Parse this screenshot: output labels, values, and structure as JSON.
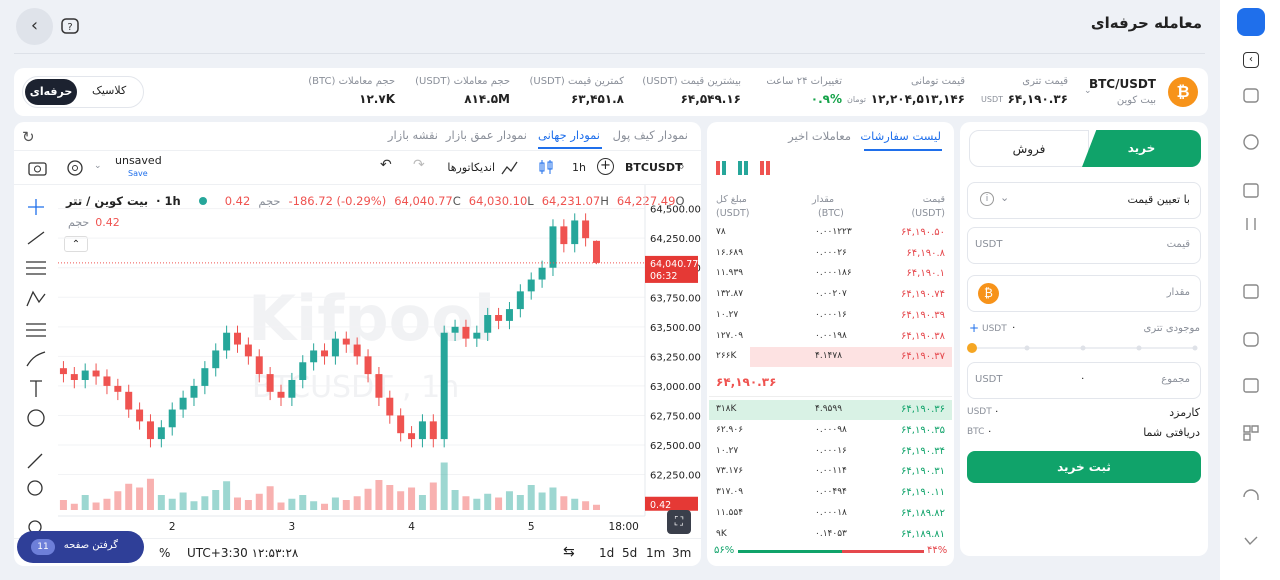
{
  "header": {
    "title": "معامله حرفه‌ای"
  },
  "ticker": {
    "pair": "BTC/USDT",
    "name": "بیت کوین",
    "stats": [
      {
        "label": "قیمت تتری",
        "value": "۶۴,۱۹۰.۳۶",
        "unit": "USDT"
      },
      {
        "label": "قیمت تومانی",
        "value": "۱۲,۲۰۴,۵۱۳,۱۴۶",
        "unit": "تومان"
      },
      {
        "label": "تغییرات ۲۴ ساعت",
        "value": "۰.۹%",
        "color": "#16a34a"
      },
      {
        "label": "بیشترین قیمت (USDT)",
        "value": "۶۴,۵۴۹.۱۶"
      },
      {
        "label": "کمترین قیمت (USDT)",
        "value": "۶۳,۴۵۱.۸"
      },
      {
        "label": "حجم معاملات (USDT)",
        "value": "۸۱۴.۵M"
      },
      {
        "label": "حجم معاملات (BTC)",
        "value": "۱۲.۷K"
      }
    ],
    "toggle": [
      "کلاسیک",
      "حرفه‌ای"
    ]
  },
  "chart": {
    "tabs": [
      "نمودار کیف پول",
      "نمودار جهانی",
      "نمودار عمق بازار",
      "نقشه بازار"
    ],
    "symbol": "BTCUSDT",
    "interval": "1h",
    "indicators": "اندیکاتورها",
    "layout": "unsaved",
    "save": "Save",
    "legend": {
      "title": "بیت کوین / تتر",
      "interval": "· 1h",
      "volume_key": "حجم",
      "volume": "0.42",
      "change": "-186.72 (-0.29%)",
      "ohlc": [
        {
          "key": "O",
          "value": "64,227.49"
        },
        {
          "key": "H",
          "value": "64,231.07"
        },
        {
          "key": "L",
          "value": "64,030.10"
        },
        {
          "key": "C",
          "value": "64,040.77"
        }
      ]
    },
    "watermark": [
      "Kifpool",
      "BTCUSDT , 1h"
    ],
    "last_price": "64,040.77",
    "countdown": "06:32",
    "periods": [
      "1d",
      "5d",
      "1m",
      "3m"
    ],
    "clock": "UTC+3:30 ۱۲:۵۳:۲۸",
    "percent": "%",
    "screenshot": "گرفتن صفحه",
    "badge": "11"
  },
  "chart_data": {
    "type": "candlestick",
    "ylim": [
      61950,
      64700
    ],
    "xlim": [
      -0.5,
      53
    ],
    "vlim": [
      0,
      6
    ],
    "yticks": [
      {
        "value": 64500,
        "label": "64,500.00"
      },
      {
        "value": 64250,
        "label": "64,250.00"
      },
      {
        "value": 64000,
        "label": "64,000.00"
      },
      {
        "value": 63750,
        "label": "63,750.00"
      },
      {
        "value": 63500,
        "label": "63,500.00"
      },
      {
        "value": 63250,
        "label": "63,250.00"
      },
      {
        "value": 63000,
        "label": "63,000.00"
      },
      {
        "value": 62750,
        "label": "62,750.00"
      },
      {
        "value": 62500,
        "label": "62,500.00"
      },
      {
        "value": 62250,
        "label": "62,250.00"
      }
    ],
    "xticks": [
      {
        "value": 10,
        "label": "2"
      },
      {
        "value": 21,
        "label": "3"
      },
      {
        "value": 32,
        "label": "4"
      },
      {
        "value": 43,
        "label": "5"
      },
      {
        "value": 51.5,
        "label": "18:00"
      }
    ],
    "up_color": "#26a69a",
    "down_color": "#ef5350",
    "grid": true,
    "open": [
      63150,
      63100,
      63050,
      63130,
      63080,
      63000,
      62950,
      62800,
      62700,
      62550,
      62650,
      62800,
      62900,
      63000,
      63150,
      63300,
      63450,
      63350,
      63250,
      63100,
      62950,
      62900,
      63050,
      63200,
      63300,
      63250,
      63400,
      63350,
      63250,
      63100,
      62900,
      62750,
      62600,
      62550,
      62700,
      62550,
      63450,
      63500,
      63400,
      63450,
      63600,
      63550,
      63650,
      63800,
      63900,
      64000,
      64350,
      64200,
      64400,
      64227.49
    ],
    "high": [
      63210,
      63160,
      63190,
      63190,
      63140,
      63060,
      63010,
      62860,
      62760,
      62710,
      62860,
      62960,
      63060,
      63210,
      63360,
      63510,
      63510,
      63410,
      63310,
      63160,
      63010,
      63110,
      63260,
      63360,
      63360,
      63460,
      63460,
      63410,
      63310,
      63160,
      62960,
      62810,
      62660,
      62760,
      62760,
      63510,
      63560,
      63560,
      63510,
      63660,
      63660,
      63710,
      63860,
      63960,
      64060,
      64410,
      64410,
      64460,
      64460,
      64231.07
    ],
    "low": [
      63030,
      62980,
      62980,
      63010,
      62930,
      62880,
      62730,
      62630,
      62480,
      62480,
      62580,
      62730,
      62830,
      62930,
      63080,
      63230,
      63280,
      63180,
      63030,
      62880,
      62830,
      62830,
      62980,
      63130,
      63180,
      63180,
      63280,
      63180,
      63030,
      62830,
      62680,
      62530,
      62480,
      62480,
      62480,
      62480,
      63380,
      63330,
      63330,
      63380,
      63480,
      63480,
      63580,
      63730,
      63830,
      63930,
      64130,
      64130,
      64180,
      64030.1
    ],
    "close": [
      63100,
      63050,
      63130,
      63080,
      63000,
      62950,
      62800,
      62700,
      62550,
      62650,
      62800,
      62900,
      63000,
      63150,
      63300,
      63450,
      63350,
      63250,
      63100,
      62950,
      62900,
      63050,
      63200,
      63300,
      63250,
      63400,
      63350,
      63250,
      63100,
      62900,
      62750,
      62600,
      62550,
      62700,
      62550,
      63450,
      63500,
      63400,
      63450,
      63600,
      63550,
      63650,
      63800,
      63900,
      64000,
      64350,
      64200,
      64400,
      64250,
      64040.77
    ],
    "volume": [
      0.8,
      0.5,
      1.2,
      0.6,
      0.9,
      1.5,
      2.1,
      1.8,
      2.5,
      1.2,
      0.9,
      1.4,
      0.7,
      1.1,
      1.6,
      2.3,
      1.0,
      0.8,
      1.3,
      1.9,
      0.6,
      0.9,
      1.2,
      0.7,
      0.5,
      1.0,
      0.8,
      1.1,
      1.7,
      2.4,
      2.0,
      1.5,
      1.8,
      1.2,
      2.2,
      3.8,
      1.6,
      1.1,
      0.9,
      1.3,
      1.0,
      1.5,
      1.2,
      2.0,
      1.4,
      1.8,
      1.1,
      0.9,
      0.7,
      0.42
    ]
  },
  "order_book": {
    "tabs": [
      "لیست سفارشات",
      "معاملات اخیر"
    ],
    "headers": [
      [
        "قیمت",
        "(USDT)"
      ],
      [
        "مقدار",
        "(BTC)"
      ],
      [
        "مبلغ کل",
        "(USDT)"
      ]
    ],
    "asks": [
      [
        "۶۴,۱۹۰.۵۰",
        "۰.۰۰۱۲۲۳",
        "۷۸"
      ],
      [
        "۶۴,۱۹۰.۸",
        "۰.۰۰۰۲۶",
        "۱۶.۶۸۹"
      ],
      [
        "۶۴,۱۹۰.۱",
        "۰.۰۰۰۱۸۶",
        "۱۱.۹۳۹"
      ],
      [
        "۶۴,۱۹۰.۷۴",
        "۰.۰۰۲۰۷",
        "۱۳۲.۸۷"
      ],
      [
        "۶۴,۱۹۰.۳۹",
        "۰.۰۰۰۱۶",
        "۱۰.۲۷"
      ],
      [
        "۶۴,۱۹۰.۳۸",
        "۰.۰۰۱۹۸",
        "۱۲۷.۰۹"
      ],
      [
        "۶۴,۱۹۰.۳۷",
        "۴.۱۴۷۸",
        "۲۶۶K"
      ]
    ],
    "mid": "۶۴,۱۹۰.۳۶",
    "bids": [
      [
        "۶۴,۱۹۰.۳۶",
        "۴.۹۵۹۹",
        "۳۱۸K"
      ],
      [
        "۶۴,۱۹۰.۳۵",
        "۰.۰۰۰۹۸",
        "۶۲.۹۰۶"
      ],
      [
        "۶۴,۱۹۰.۳۴",
        "۰.۰۰۰۱۶",
        "۱۰.۲۷"
      ],
      [
        "۶۴,۱۹۰.۳۱",
        "۰.۰۰۱۱۴",
        "۷۳.۱۷۶"
      ],
      [
        "۶۴,۱۹۰.۱۱",
        "۰.۰۰۴۹۴",
        "۳۱۷.۰۹"
      ],
      [
        "۶۴,۱۸۹.۸۲",
        "۰.۰۰۰۱۸",
        "۱۱.۵۵۴"
      ],
      [
        "۶۴,۱۸۹.۸۱",
        "۰.۱۴۰۵۳",
        "۹K"
      ]
    ],
    "ratio": {
      "values": [
        56,
        44
      ],
      "value_labels": [
        "۵۶%",
        "۴۴%"
      ]
    }
  },
  "trade": {
    "buy": "خرید",
    "sell": "فروش",
    "order_type": "با تعیین قیمت",
    "price": "قیمت",
    "amount": "مقدار",
    "total": "مجموع",
    "usdt": "USDT",
    "btc": "BTC",
    "zero": "۰",
    "plus": "+",
    "balance": "موجودی تتری",
    "fee": "کارمزد",
    "receive": "دریافتی شما",
    "submit": "ثبت خرید"
  }
}
